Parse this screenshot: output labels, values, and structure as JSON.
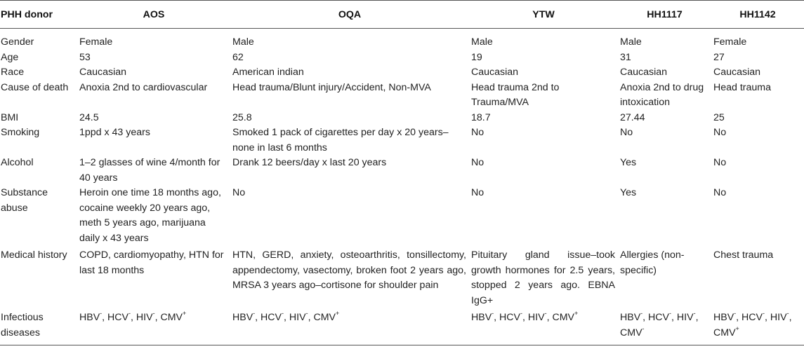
{
  "headers": [
    "PHH donor",
    "AOS",
    "OQA",
    "YTW",
    "HH1117",
    "HH1142"
  ],
  "rows": [
    {
      "label": "Gender",
      "cells": [
        "Female",
        "Male",
        "Male",
        "Male",
        "Female"
      ]
    },
    {
      "label": "Age",
      "cells": [
        "53",
        "62",
        "19",
        "31",
        "27"
      ]
    },
    {
      "label": "Race",
      "cells": [
        "Caucasian",
        "American indian",
        "Caucasian",
        "Caucasian",
        "Caucasian"
      ]
    },
    {
      "label": "Cause of death",
      "cells": [
        "Anoxia 2nd to cardiovascular",
        "Head trauma/Blunt injury/Accident, Non-MVA",
        "Head trauma 2nd to Trauma/MVA",
        "Anoxia 2nd to drug intoxication",
        "Head trauma"
      ]
    },
    {
      "label": "BMI",
      "cells": [
        "24.5",
        "25.8",
        "18.7",
        "27.44",
        "25"
      ]
    },
    {
      "label": "Smoking",
      "cells": [
        "1ppd x 43 years",
        "Smoked 1 pack of cigarettes per day x 20 years–none in last 6 months",
        "No",
        "No",
        "No"
      ]
    },
    {
      "label": "Alcohol",
      "cells": [
        "1–2 glasses of wine 4/month for 40 years",
        "Drank 12 beers/day x last 20 years",
        "No",
        "Yes",
        "No"
      ]
    },
    {
      "label": "Substance abuse",
      "cells": [
        "Heroin one time 18 months ago, cocaine weekly 20 years ago, meth 5 years ago, marijuana daily x 43 years",
        "No",
        "No",
        "Yes",
        "No"
      ]
    },
    {
      "label": "Medical history",
      "cells": [
        "COPD, cardiomyopathy, HTN for last 18 months",
        "HTN, GERD, anxiety, osteoarthritis, tonsillectomy, appendectomy, vasectomy, broken foot 2 years ago, MRSA 3 years ago–cortisone for shoulder pain",
        "Pituitary gland issue–took growth hormones for 2.5 years, stopped 2 years ago. EBNA IgG+",
        "Allergies (non-specific)",
        "Chest trauma"
      ]
    }
  ],
  "infectious": {
    "label": "Infectious diseases",
    "cells": [
      [
        {
          "t": "HBV",
          "s": "-"
        },
        {
          "t": ", HCV",
          "s": "-"
        },
        {
          "t": ", HIV",
          "s": "-"
        },
        {
          "t": ", CMV",
          "s": "+"
        }
      ],
      [
        {
          "t": "HBV",
          "s": "-"
        },
        {
          "t": ", HCV",
          "s": "-"
        },
        {
          "t": ", HIV",
          "s": "-"
        },
        {
          "t": ", CMV",
          "s": "+"
        }
      ],
      [
        {
          "t": "HBV",
          "s": "-"
        },
        {
          "t": ", HCV",
          "s": "-"
        },
        {
          "t": ", HIV",
          "s": "-"
        },
        {
          "t": ", CMV",
          "s": "+"
        }
      ],
      [
        {
          "t": "HBV",
          "s": "-"
        },
        {
          "t": ", HCV",
          "s": "-"
        },
        {
          "t": ", HIV",
          "s": "-"
        },
        {
          "t": ", CMV",
          "s": "-"
        }
      ],
      [
        {
          "t": "HBV",
          "s": "-"
        },
        {
          "t": ", HCV",
          "s": "-"
        },
        {
          "t": ", HIV",
          "s": "-"
        },
        {
          "t": ", CMV",
          "s": "+"
        }
      ]
    ]
  }
}
